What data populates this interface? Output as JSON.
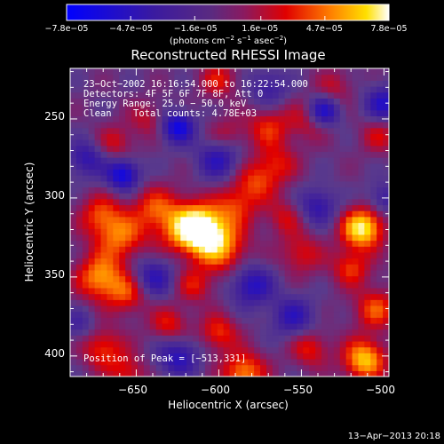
{
  "chart_data": {
    "type": "heatmap",
    "title": "Reconstructed RHESSI Image",
    "xlabel": "Heliocentric X (arcsec)",
    "ylabel": "Heliocentric Y (arcsec)",
    "xlim": [
      -690,
      -497
    ],
    "ylim": [
      237,
      432
    ],
    "x_ticks": [
      -650,
      -600,
      -550,
      -500
    ],
    "x_tick_labels": [
      "−650",
      "−600",
      "−550",
      "−500"
    ],
    "y_ticks": [
      250,
      300,
      350,
      400
    ],
    "y_tick_labels": [
      "250",
      "300",
      "350",
      "400"
    ],
    "colorbar": {
      "min": -7.8e-05,
      "max": 7.8e-05,
      "tick_labels": [
        "−7.8e−05",
        "−4.7e−05",
        "−1.6e−05",
        "1.6e−05",
        "4.7e−05",
        "7.8e−05"
      ],
      "tick_values": [
        -7.8e-05,
        -4.7e-05,
        -1.6e-05,
        1.6e-05,
        4.7e-05,
        7.8e-05
      ],
      "units_label_main": "(photons cm",
      "units_sup1": "−2",
      "units_mid": " s",
      "units_sup2": "−1",
      "units_end": " asec",
      "units_sup3": "−2",
      "units_close": ")"
    },
    "annotations": {
      "time": "23−Oct−2002 16:16:54.000 to 16:22:54.000",
      "detectors": "Detectors: 4F 5F 6F 7F 8F, Att 0",
      "energy": "Energy Range: 25.0 − 50.0 keV",
      "clean_label": "Clean",
      "counts": "Total counts: 4.78E+03",
      "peak": "Position of Peak = [−513,331]"
    },
    "peak_position": [
      -513,
      331
    ],
    "blobs": [
      {
        "x": -623,
        "y": 333,
        "v": 0.6,
        "s": 12
      },
      {
        "x": -610,
        "y": 330,
        "v": 1.0,
        "s": 10
      },
      {
        "x": -598,
        "y": 318,
        "v": 0.6,
        "s": 11
      },
      {
        "x": -660,
        "y": 326,
        "v": 0.6,
        "s": 11
      },
      {
        "x": -672,
        "y": 340,
        "v": 0.45,
        "s": 9
      },
      {
        "x": -672,
        "y": 300,
        "v": 0.7,
        "s": 10
      },
      {
        "x": -655,
        "y": 290,
        "v": 0.5,
        "s": 9
      },
      {
        "x": -640,
        "y": 345,
        "v": 0.4,
        "s": 9
      },
      {
        "x": -590,
        "y": 345,
        "v": 0.45,
        "s": 9
      },
      {
        "x": -578,
        "y": 360,
        "v": 0.45,
        "s": 9
      },
      {
        "x": -565,
        "y": 372,
        "v": 0.4,
        "s": 9
      },
      {
        "x": -570,
        "y": 395,
        "v": 0.45,
        "s": 9
      },
      {
        "x": -545,
        "y": 400,
        "v": 0.4,
        "s": 9
      },
      {
        "x": -513,
        "y": 331,
        "v": 1.0,
        "s": 9
      },
      {
        "x": -520,
        "y": 306,
        "v": 0.5,
        "s": 8
      },
      {
        "x": -550,
        "y": 315,
        "v": 0.4,
        "s": 9
      },
      {
        "x": -505,
        "y": 280,
        "v": 0.55,
        "s": 9
      },
      {
        "x": -512,
        "y": 248,
        "v": 0.85,
        "s": 9
      },
      {
        "x": -545,
        "y": 255,
        "v": 0.45,
        "s": 8
      },
      {
        "x": -585,
        "y": 240,
        "v": 0.7,
        "s": 9
      },
      {
        "x": -600,
        "y": 265,
        "v": 0.5,
        "s": 8
      },
      {
        "x": -630,
        "y": 270,
        "v": 0.45,
        "s": 8
      },
      {
        "x": -670,
        "y": 255,
        "v": 0.5,
        "s": 9
      },
      {
        "x": -655,
        "y": 240,
        "v": 0.4,
        "s": 8
      },
      {
        "x": -615,
        "y": 295,
        "v": 0.4,
        "s": 8
      },
      {
        "x": -560,
        "y": 338,
        "v": 0.35,
        "s": 8
      },
      {
        "x": -663,
        "y": 385,
        "v": 0.35,
        "s": 8
      },
      {
        "x": -643,
        "y": 400,
        "v": 0.3,
        "s": 8
      },
      {
        "x": -600,
        "y": 425,
        "v": 0.4,
        "s": 8
      },
      {
        "x": -595,
        "y": 390,
        "v": 0.3,
        "s": 8
      },
      {
        "x": -530,
        "y": 420,
        "v": 0.3,
        "s": 8
      },
      {
        "x": -503,
        "y": 390,
        "v": 0.35,
        "s": 8
      },
      {
        "x": -600,
        "y": 375,
        "v": -0.55,
        "s": 9
      },
      {
        "x": -625,
        "y": 395,
        "v": -0.8,
        "s": 7
      },
      {
        "x": -658,
        "y": 365,
        "v": -0.8,
        "s": 7
      },
      {
        "x": -680,
        "y": 375,
        "v": -0.5,
        "s": 8
      },
      {
        "x": -640,
        "y": 300,
        "v": -0.55,
        "s": 9
      },
      {
        "x": -580,
        "y": 295,
        "v": -0.6,
        "s": 9
      },
      {
        "x": -555,
        "y": 275,
        "v": -0.5,
        "s": 9
      },
      {
        "x": -625,
        "y": 250,
        "v": -0.55,
        "s": 9
      },
      {
        "x": -537,
        "y": 405,
        "v": -0.8,
        "s": 7
      },
      {
        "x": -500,
        "y": 410,
        "v": -0.6,
        "s": 8
      },
      {
        "x": -540,
        "y": 345,
        "v": -0.5,
        "s": 8
      },
      {
        "x": -500,
        "y": 350,
        "v": -0.4,
        "s": 7
      },
      {
        "x": -685,
        "y": 270,
        "v": -0.3,
        "s": 7
      },
      {
        "x": -570,
        "y": 420,
        "v": -0.4,
        "s": 8
      }
    ]
  },
  "footer": {
    "date": "13−Apr−2013 20:18"
  }
}
